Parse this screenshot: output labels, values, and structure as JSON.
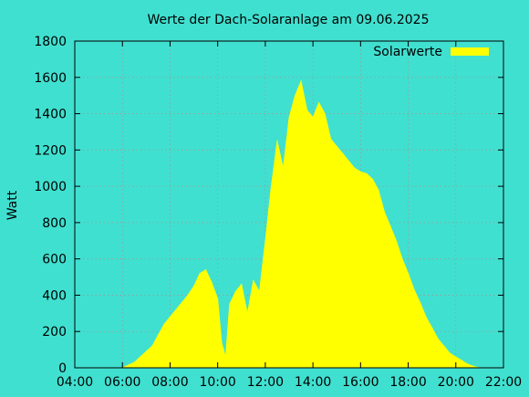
{
  "chart_data": {
    "type": "area",
    "title": "Werte der Dach-Solaranlage am 09.06.2025",
    "xlabel": "",
    "ylabel": "Watt",
    "x_unit": "time of day (HH:MM)",
    "xlim": [
      "04:00",
      "22:00"
    ],
    "ylim": [
      0,
      1800
    ],
    "x_ticks": [
      "04:00",
      "06:00",
      "08:00",
      "10:00",
      "12:00",
      "14:00",
      "16:00",
      "18:00",
      "20:00",
      "22:00"
    ],
    "y_ticks": [
      "0",
      "200",
      "400",
      "600",
      "800",
      "1000",
      "1200",
      "1400",
      "1600",
      "1800"
    ],
    "grid": true,
    "legend_position": "top-right",
    "colors": {
      "background": "#40e0d0",
      "series": "#ffff00",
      "grid": "#9a9a9a"
    },
    "series": [
      {
        "name": "Solarwerte",
        "points": [
          [
            "06:00",
            0
          ],
          [
            "06:15",
            15
          ],
          [
            "06:30",
            30
          ],
          [
            "06:45",
            60
          ],
          [
            "07:00",
            90
          ],
          [
            "07:15",
            120
          ],
          [
            "07:30",
            180
          ],
          [
            "07:45",
            240
          ],
          [
            "08:00",
            280
          ],
          [
            "08:15",
            320
          ],
          [
            "08:30",
            360
          ],
          [
            "08:45",
            400
          ],
          [
            "09:00",
            450
          ],
          [
            "09:15",
            520
          ],
          [
            "09:30",
            540
          ],
          [
            "09:45",
            470
          ],
          [
            "10:00",
            380
          ],
          [
            "10:10",
            140
          ],
          [
            "10:20",
            60
          ],
          [
            "10:30",
            350
          ],
          [
            "10:45",
            420
          ],
          [
            "11:00",
            460
          ],
          [
            "11:15",
            300
          ],
          [
            "11:30",
            480
          ],
          [
            "11:45",
            420
          ],
          [
            "12:00",
            700
          ],
          [
            "12:15",
            1000
          ],
          [
            "12:30",
            1250
          ],
          [
            "12:45",
            1100
          ],
          [
            "13:00",
            1380
          ],
          [
            "13:15",
            1500
          ],
          [
            "13:30",
            1580
          ],
          [
            "13:45",
            1420
          ],
          [
            "14:00",
            1380
          ],
          [
            "14:15",
            1460
          ],
          [
            "14:30",
            1400
          ],
          [
            "14:45",
            1260
          ],
          [
            "15:00",
            1220
          ],
          [
            "15:15",
            1180
          ],
          [
            "15:30",
            1140
          ],
          [
            "15:45",
            1100
          ],
          [
            "16:00",
            1080
          ],
          [
            "16:15",
            1070
          ],
          [
            "16:30",
            1040
          ],
          [
            "16:45",
            980
          ],
          [
            "17:00",
            860
          ],
          [
            "17:15",
            780
          ],
          [
            "17:30",
            700
          ],
          [
            "17:45",
            600
          ],
          [
            "18:00",
            520
          ],
          [
            "18:15",
            430
          ],
          [
            "18:30",
            360
          ],
          [
            "18:45",
            280
          ],
          [
            "19:00",
            220
          ],
          [
            "19:15",
            160
          ],
          [
            "19:30",
            120
          ],
          [
            "19:45",
            80
          ],
          [
            "20:00",
            60
          ],
          [
            "20:15",
            40
          ],
          [
            "20:30",
            20
          ],
          [
            "20:45",
            8
          ],
          [
            "21:00",
            0
          ]
        ]
      }
    ]
  }
}
